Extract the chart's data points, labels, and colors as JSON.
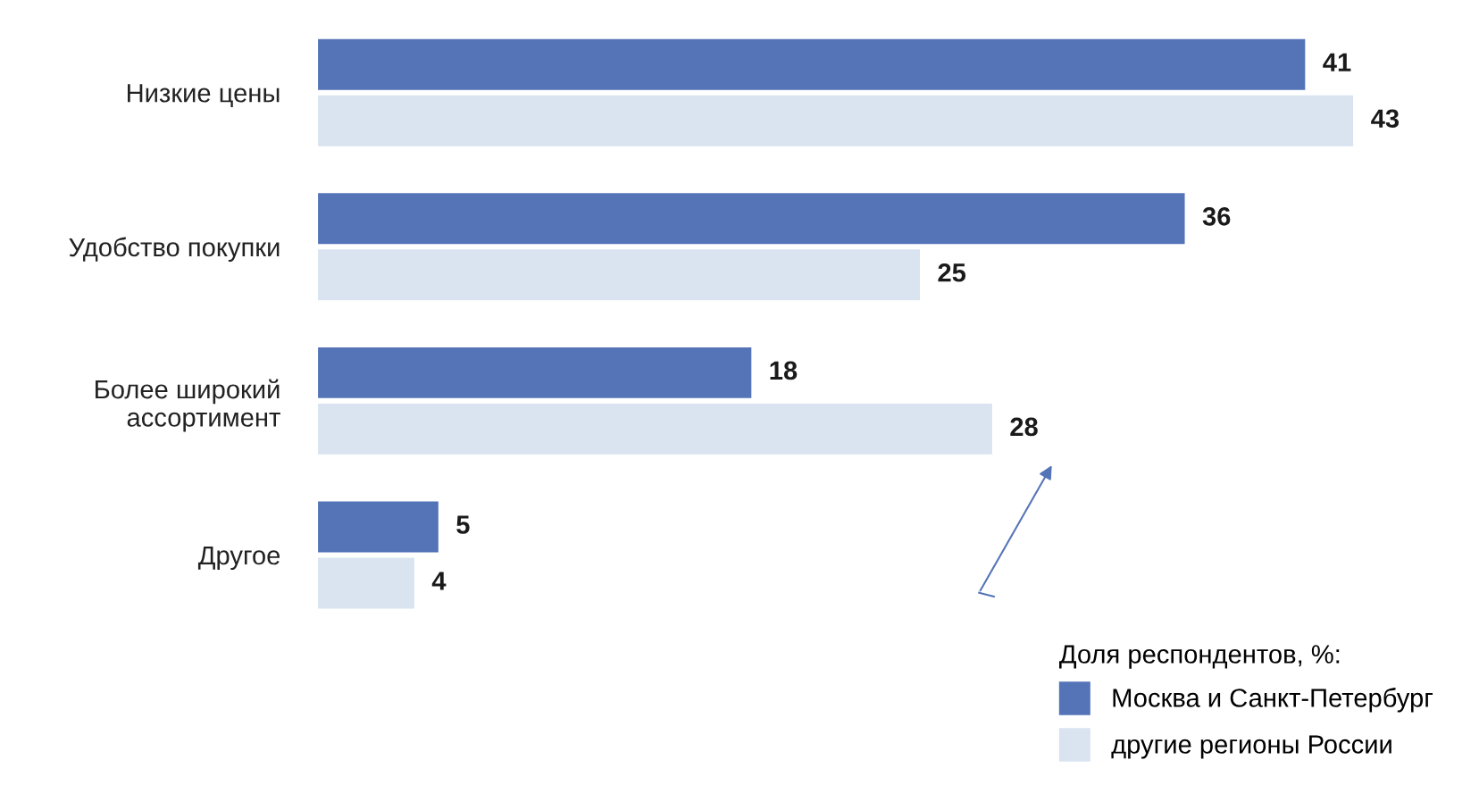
{
  "chart_data": {
    "type": "bar",
    "orientation": "horizontal",
    "categories": [
      "Низкие цены",
      "Удобство покупки",
      "Более широкий\nассортимент",
      "Другое"
    ],
    "series": [
      {
        "name": "Москва и Санкт-Петербург",
        "color": "#5574b8",
        "values": [
          41,
          36,
          18,
          5
        ]
      },
      {
        "name": "другие регионы России",
        "color": "#d9e4f0",
        "values": [
          43,
          25,
          28,
          4
        ]
      }
    ],
    "legend_title": "Доля респондентов, %:",
    "legend": "bottom right",
    "data_labels": true,
    "tick_labels": "y",
    "grid": false
  }
}
